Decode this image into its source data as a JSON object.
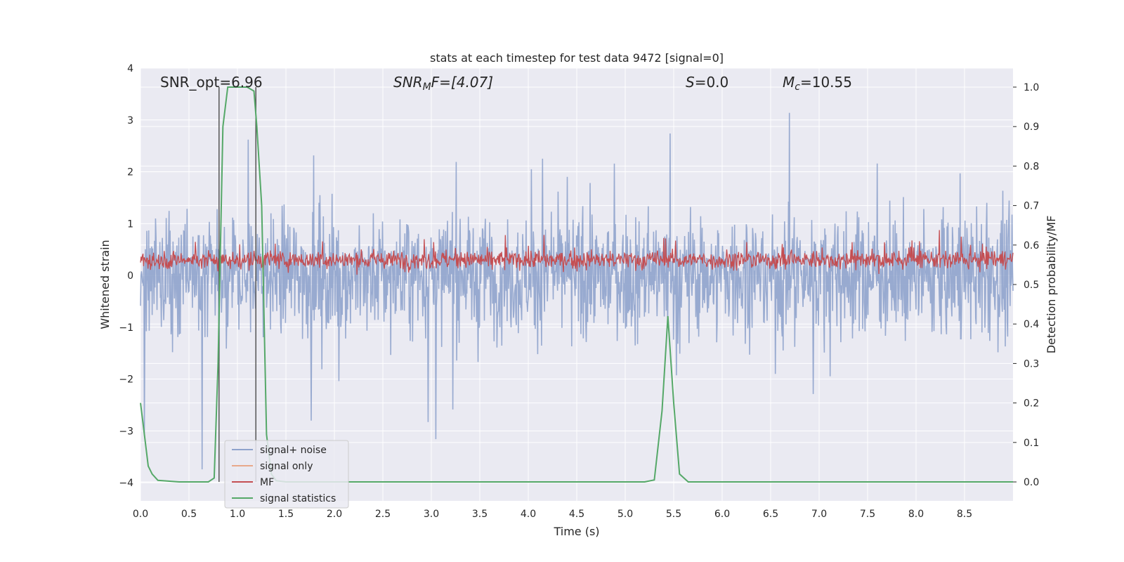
{
  "chart_data": {
    "type": "line",
    "title": "stats at each timestep for test data 9472 [signal=0]",
    "xlabel": "Time (s)",
    "ylabel": "Whitened strain",
    "y2label": "Detection probability/MF",
    "xlim": [
      0,
      9.0
    ],
    "ylim": [
      -4.35,
      4.0
    ],
    "y2lim": [
      -0.048,
      1.048
    ],
    "x_ticks": [
      "0.0",
      "0.5",
      "1.0",
      "1.5",
      "2.0",
      "2.5",
      "3.0",
      "3.5",
      "4.0",
      "4.5",
      "5.0",
      "5.5",
      "6.0",
      "6.5",
      "7.0",
      "7.5",
      "8.0",
      "8.5"
    ],
    "y_ticks": [
      "4",
      "3",
      "2",
      "1",
      "0",
      "−1",
      "−2",
      "−3",
      "−4"
    ],
    "y2_ticks": [
      "1.0",
      "0.9",
      "0.8",
      "0.7",
      "0.6",
      "0.5",
      "0.4",
      "0.3",
      "0.2",
      "0.1",
      "0.0"
    ],
    "grid": true,
    "legend_position": "lower-left",
    "annotations": {
      "snr_opt": "SNR_opt=6.96",
      "snr_mf_main": "SNR",
      "snr_mf_sub": "M",
      "snr_mf_rest": "F=[4.07]",
      "s_main": "S",
      "s_rest": "=0.0",
      "mc_main": "M",
      "mc_sub": "c",
      "mc_rest": "=10.55"
    },
    "vertical_lines": [
      0.81,
      1.19
    ],
    "series": [
      {
        "name": "signal+ noise",
        "color": "#8fa3cc",
        "description_values": "noise-like whitened strain, range approximately -4.0 to 3.6"
      },
      {
        "name": "signal only",
        "color": "#e8a88a",
        "values": []
      },
      {
        "name": "MF",
        "color": "#c44e52",
        "description_values": "matched filter output approximately 0.0 to 1.0 on left axis"
      },
      {
        "name": "signal statistics",
        "color": "#55a868",
        "x": [
          0.0,
          0.02,
          0.05,
          0.08,
          0.12,
          0.18,
          0.4,
          0.7,
          0.76,
          0.8,
          0.85,
          0.9,
          1.0,
          1.1,
          1.17,
          1.2,
          1.25,
          1.3,
          1.35,
          1.4,
          1.5,
          2.0,
          3.0,
          4.0,
          5.0,
          5.2,
          5.3,
          5.38,
          5.44,
          5.5,
          5.56,
          5.65,
          6.0,
          7.0,
          8.0,
          9.0
        ],
        "values": [
          0.2,
          0.16,
          0.1,
          0.04,
          0.02,
          0.004,
          0.0,
          0.0,
          0.01,
          0.3,
          0.9,
          1.0,
          1.0,
          1.0,
          0.99,
          0.9,
          0.7,
          0.12,
          0.02,
          0.003,
          0.0,
          0.0,
          0.0,
          0.0,
          0.0,
          0.0,
          0.005,
          0.18,
          0.42,
          0.2,
          0.02,
          0.0,
          0.0,
          0.0,
          0.0,
          0.0
        ]
      }
    ]
  },
  "colors": {
    "plot_bg": "#eaeaf2",
    "grid": "#ffffff"
  }
}
